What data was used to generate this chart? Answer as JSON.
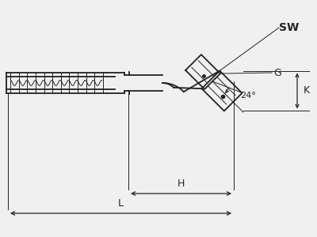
{
  "bg_color": "#f0f0f0",
  "line_color": "#222222",
  "lw": 1.3,
  "thin_lw": 0.7,
  "dim_lw": 0.9,
  "labels": {
    "SW": "SW",
    "K": "K",
    "G": "G",
    "H": "H",
    "L": "L",
    "angle": "24°"
  },
  "font_size": 9,
  "font_size_small": 8
}
